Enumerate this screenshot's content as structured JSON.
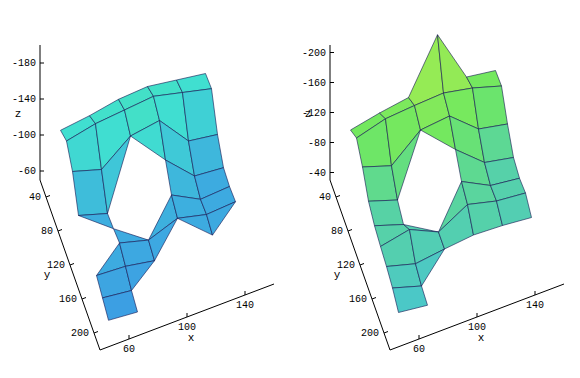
{
  "chart_data": [
    {
      "type": "surface",
      "xlabel": "x",
      "ylabel": "y",
      "zlabel": "z",
      "xlim": [
        40,
        160
      ],
      "ylim": [
        20,
        220
      ],
      "zlim": [
        -200,
        -50
      ],
      "xticks": [
        60,
        100,
        140
      ],
      "yticks": [
        40,
        80,
        120,
        160,
        200
      ],
      "zticks": [
        -180,
        -140,
        -100,
        -60
      ],
      "x": [
        50,
        70,
        90,
        110,
        130,
        150
      ],
      "y": [
        40,
        60,
        80,
        100,
        120,
        140,
        160,
        180,
        200
      ],
      "z": [
        [
          -118,
          -122,
          -128,
          -130,
          -125,
          -120
        ],
        [
          -125,
          -132,
          -135,
          -138,
          -130,
          -122
        ],
        [
          -110,
          -100,
          -125,
          -130,
          -95,
          -90
        ],
        [
          -80,
          -70,
          null,
          -105,
          -75,
          -72
        ],
        [
          null,
          -72,
          null,
          -85,
          -68,
          -70
        ],
        [
          null,
          -75,
          -66,
          -78,
          -70,
          -72
        ],
        [
          -70,
          -68,
          -62,
          null,
          -66,
          null
        ],
        [
          -64,
          -60,
          null,
          null,
          null,
          null
        ],
        [
          -58,
          -55,
          null,
          null,
          null,
          null
        ]
      ]
    },
    {
      "type": "surface",
      "xlabel": "x",
      "ylabel": "y",
      "zlabel": "z",
      "xlim": [
        40,
        160
      ],
      "ylim": [
        20,
        220
      ],
      "zlim": [
        -210,
        -30
      ],
      "xticks": [
        60,
        100,
        140
      ],
      "yticks": [
        40,
        80,
        120,
        160,
        200
      ],
      "zticks": [
        -200,
        -160,
        -120,
        -80,
        -40
      ],
      "x": [
        50,
        70,
        90,
        110,
        130,
        150
      ],
      "y": [
        40,
        60,
        80,
        100,
        120,
        140,
        160,
        180,
        200
      ],
      "z": [
        [
          -112,
          -120,
          -126,
          -195,
          -124,
          -118
        ],
        [
          -124,
          -135,
          -138,
          -140,
          -132,
          -120
        ],
        [
          -108,
          -95,
          -128,
          -132,
          -100,
          -92
        ],
        [
          -85,
          -72,
          null,
          -110,
          -78,
          -70
        ],
        [
          -75,
          -62,
          null,
          -90,
          -70,
          -65
        ],
        [
          -70,
          -78,
          -60,
          -82,
          -72,
          -68
        ],
        [
          -66,
          -55,
          -60,
          -64,
          -62,
          -58
        ],
        [
          -60,
          -48,
          null,
          null,
          null,
          null
        ],
        [
          -50,
          -45,
          null,
          null,
          null,
          null
        ]
      ]
    }
  ]
}
